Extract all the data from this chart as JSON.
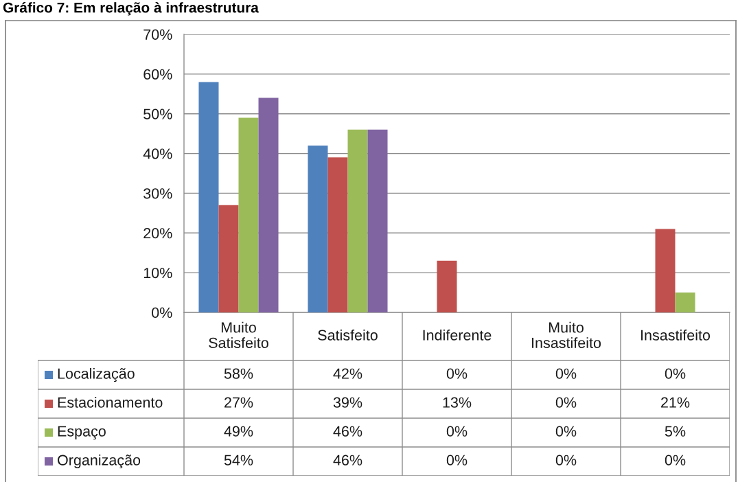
{
  "chart_data": {
    "type": "bar",
    "title": "Gráfico 7: Em relação à infraestrutura",
    "categories": [
      "Muito\nSatisfeito",
      "Satisfeito",
      "Indiferente",
      "Muito\nInsastifeito",
      "Insastifeito"
    ],
    "series": [
      {
        "name": "Localização",
        "color": "#4f81bd",
        "values": [
          58,
          42,
          0,
          0,
          0
        ],
        "value_labels": [
          "58%",
          "42%",
          "0%",
          "0%",
          "0%"
        ]
      },
      {
        "name": "Estacionamento",
        "color": "#c0504d",
        "values": [
          27,
          39,
          13,
          0,
          21
        ],
        "value_labels": [
          "27%",
          "39%",
          "13%",
          "0%",
          "21%"
        ]
      },
      {
        "name": "Espaço",
        "color": "#9bbb59",
        "values": [
          49,
          46,
          0,
          0,
          5
        ],
        "value_labels": [
          "49%",
          "46%",
          "0%",
          "0%",
          "5%"
        ]
      },
      {
        "name": "Organização",
        "color": "#8064a2",
        "values": [
          54,
          46,
          0,
          0,
          0
        ],
        "value_labels": [
          "54%",
          "46%",
          "0%",
          "0%",
          "0%"
        ]
      }
    ],
    "ylim": [
      0,
      70
    ],
    "yticks": [
      {
        "value": 0,
        "label": "0%"
      },
      {
        "value": 10,
        "label": "10%"
      },
      {
        "value": 20,
        "label": "20%"
      },
      {
        "value": 30,
        "label": "30%"
      },
      {
        "value": 40,
        "label": "40%"
      },
      {
        "value": 50,
        "label": "50%"
      },
      {
        "value": 60,
        "label": "60%"
      },
      {
        "value": 70,
        "label": "70%"
      }
    ],
    "grid": "y",
    "legend": "bottom"
  }
}
